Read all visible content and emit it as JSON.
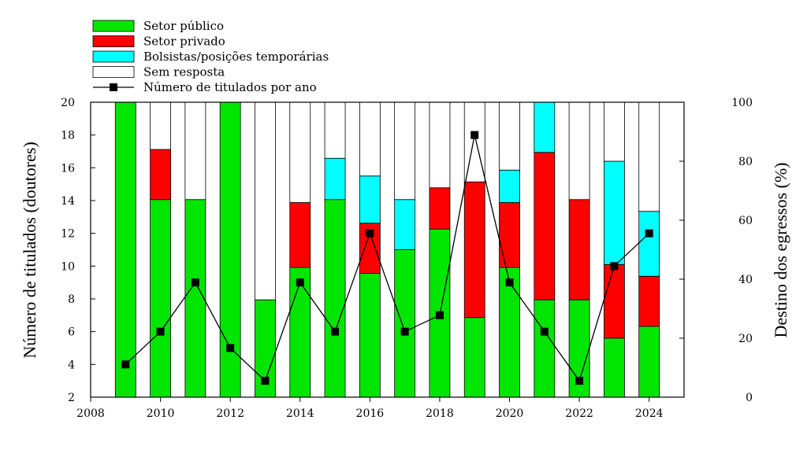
{
  "chart_data": {
    "type": "bar",
    "stacked": true,
    "colors": {
      "Setor público": "#00e600",
      "Setor privado": "#ff0000",
      "Bolsistas/posições temporárias": "#00ffff",
      "Sem resposta": "#ffffff",
      "line": "#000000"
    },
    "x": [
      2009,
      2010,
      2011,
      2012,
      2013,
      2014,
      2015,
      2016,
      2017,
      2018,
      2019,
      2020,
      2021,
      2022,
      2023,
      2024
    ],
    "xlim": [
      2008,
      2025
    ],
    "xticks": [
      "2008",
      "2010",
      "2012",
      "2014",
      "2016",
      "2018",
      "2020",
      "2022",
      "2024"
    ],
    "ylabel_left": "Número de titulados (doutores)",
    "ylim_left": [
      2,
      20
    ],
    "yticks_left": [
      "2",
      "4",
      "6",
      "8",
      "10",
      "12",
      "14",
      "16",
      "18",
      "20"
    ],
    "ylabel_right": "Destino dos egressos (%)",
    "ylim_right": [
      0,
      100
    ],
    "yticks_right": [
      "0",
      "20",
      "40",
      "60",
      "80",
      "100"
    ],
    "series": [
      {
        "name": "Setor público",
        "axis": "right",
        "values": [
          100,
          67,
          67,
          100,
          33,
          44,
          67,
          42,
          50,
          57,
          27,
          44,
          33,
          33,
          20,
          24
        ]
      },
      {
        "name": "Setor privado",
        "axis": "right",
        "values": [
          0,
          17,
          0,
          0,
          0,
          22,
          0,
          17,
          0,
          14,
          46,
          22,
          50,
          34,
          25,
          17
        ]
      },
      {
        "name": "Bolsistas/posições temporárias",
        "axis": "right",
        "values": [
          0,
          0,
          0,
          0,
          0,
          0,
          14,
          16,
          17,
          0,
          0,
          11,
          17,
          0,
          35,
          22
        ]
      },
      {
        "name": "Sem resposta",
        "axis": "right",
        "values": [
          0,
          16,
          33,
          0,
          67,
          34,
          19,
          25,
          33,
          29,
          27,
          23,
          0,
          33,
          20,
          37
        ]
      },
      {
        "name": "Número de titulados por ano",
        "type": "line",
        "axis": "left",
        "values": [
          4,
          6,
          9,
          5,
          3,
          9,
          6,
          12,
          6,
          7,
          18,
          9,
          6,
          3,
          10,
          12
        ]
      }
    ],
    "legend": {
      "position": "top-left"
    }
  }
}
